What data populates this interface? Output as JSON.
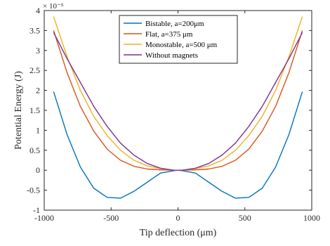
{
  "chart_data": {
    "type": "line",
    "xlabel": "Tip deflection (μm)",
    "ylabel": "Potential Energy (J)",
    "y_exponent": "× 10⁻⁵",
    "xlim": [
      -1000,
      1000
    ],
    "ylim": [
      -1,
      4
    ],
    "xticks": [
      -1000,
      -500,
      0,
      500,
      1000
    ],
    "yticks": [
      -1,
      -0.5,
      0,
      0.5,
      1,
      1.5,
      2,
      2.5,
      3,
      3.5,
      4
    ],
    "xtick_labels": [
      "-1000",
      "-500",
      "0",
      "500",
      "1000"
    ],
    "ytick_labels": [
      "-1",
      "-0.5",
      "0",
      "0.5",
      "1",
      "1.5",
      "2",
      "2.5",
      "3",
      "3.5",
      "4"
    ],
    "grid": false,
    "legend_position": "top-center",
    "x": [
      -930,
      -830,
      -730,
      -630,
      -530,
      -430,
      -330,
      -230,
      -130,
      -30,
      0,
      30,
      130,
      230,
      330,
      430,
      530,
      630,
      730,
      830,
      930
    ],
    "series": [
      {
        "name": "Bistable, a=200μm",
        "color": "#0072BD",
        "values": [
          1.97,
          0.9,
          0.08,
          -0.45,
          -0.68,
          -0.7,
          -0.53,
          -0.3,
          -0.07,
          -0.01,
          0,
          -0.01,
          -0.07,
          -0.3,
          -0.53,
          -0.7,
          -0.68,
          -0.45,
          0.08,
          0.9,
          1.97
        ]
      },
      {
        "name": "Flat, a=375 μm",
        "color": "#D95319",
        "values": [
          3.5,
          2.45,
          1.6,
          0.98,
          0.53,
          0.25,
          0.1,
          0.03,
          0.01,
          0,
          0,
          0,
          0.01,
          0.03,
          0.1,
          0.25,
          0.53,
          0.98,
          1.6,
          2.45,
          3.5
        ]
      },
      {
        "name": "Monostable, a=500 μm",
        "color": "#EDB120",
        "values": [
          3.85,
          2.85,
          2.0,
          1.35,
          0.87,
          0.5,
          0.25,
          0.11,
          0.04,
          0,
          0,
          0,
          0.04,
          0.11,
          0.25,
          0.5,
          0.87,
          1.35,
          2.0,
          2.85,
          3.85
        ]
      },
      {
        "name": "Without magnets",
        "color": "#7E2F8E",
        "values": [
          3.45,
          2.8,
          2.2,
          1.6,
          1.1,
          0.68,
          0.38,
          0.17,
          0.05,
          0,
          0,
          0,
          0.05,
          0.17,
          0.38,
          0.68,
          1.1,
          1.6,
          2.2,
          2.8,
          3.45
        ]
      }
    ]
  }
}
